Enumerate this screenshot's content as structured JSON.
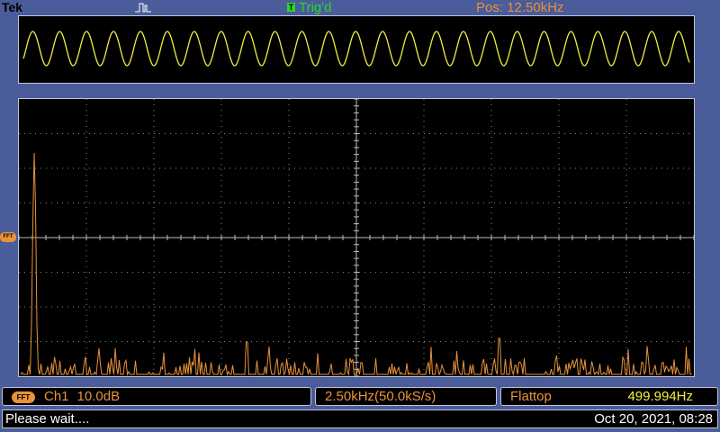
{
  "header": {
    "brand": "Tek",
    "trigger_badge": "T",
    "trigger_status": "Trig'd",
    "position": "Pos: 12.50kHz"
  },
  "fft_marker_label": "FFT",
  "channel_panel": {
    "badge": "FFT",
    "channel": "Ch1",
    "scale": "10.0dB"
  },
  "span_panel": {
    "text": "2.50kHz(50.0kS/s)"
  },
  "window_panel": {
    "window": "Flattop",
    "frequency": "499.994Hz"
  },
  "status": {
    "message": "Please wait....",
    "datetime": "Oct 20, 2021, 08:28"
  },
  "colors": {
    "time_trace": "#f0f040",
    "fft_trace": "#e8923a",
    "trigger": "#22dd22"
  },
  "icons": {
    "trigger_type": "pulse-edge-icon"
  }
}
